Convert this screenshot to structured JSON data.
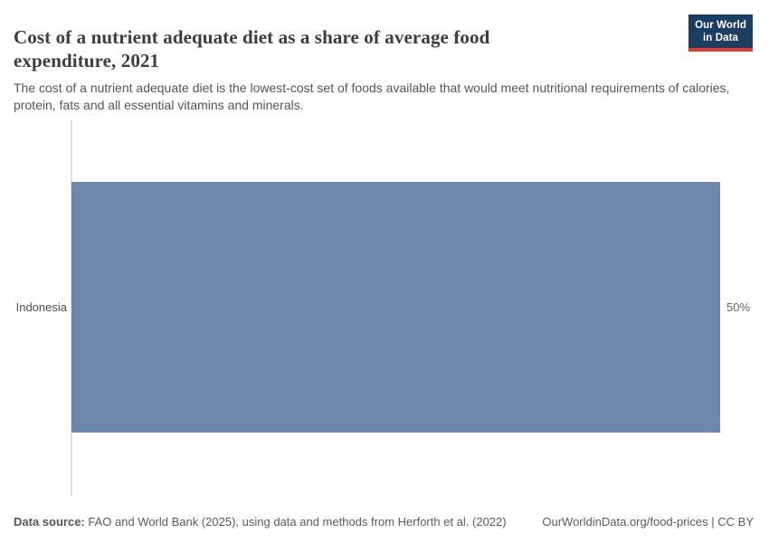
{
  "header": {
    "title": "Cost of a nutrient adequate diet as a share of average food expenditure, 2021",
    "subtitle": "The cost of a nutrient adequate diet is the lowest-cost set of foods available that would meet nutritional requirements of calories, protein, fats and all essential vitamins and minerals.",
    "logo": {
      "line1": "Our World",
      "line2": "in Data",
      "bg_color": "#1d3d63",
      "accent_color": "#dc3e31"
    }
  },
  "chart_data": {
    "type": "bar",
    "orientation": "horizontal",
    "title": "Cost of a nutrient adequate diet as a share of average food expenditure, 2021",
    "categories": [
      "Indonesia"
    ],
    "values": [
      50
    ],
    "value_labels": [
      "50%"
    ],
    "xlabel": "",
    "ylabel": "",
    "xlim": [
      0,
      50
    ],
    "grid": false,
    "legend": false,
    "bar_color": "#6e87ad",
    "axis_line_color": "#dedede"
  },
  "footer": {
    "source_label": "Data source:",
    "source_text": " FAO and World Bank (2025), using data and methods from Herforth et al. (2022)",
    "rights": "OurWorldinData.org/food-prices | CC BY"
  }
}
